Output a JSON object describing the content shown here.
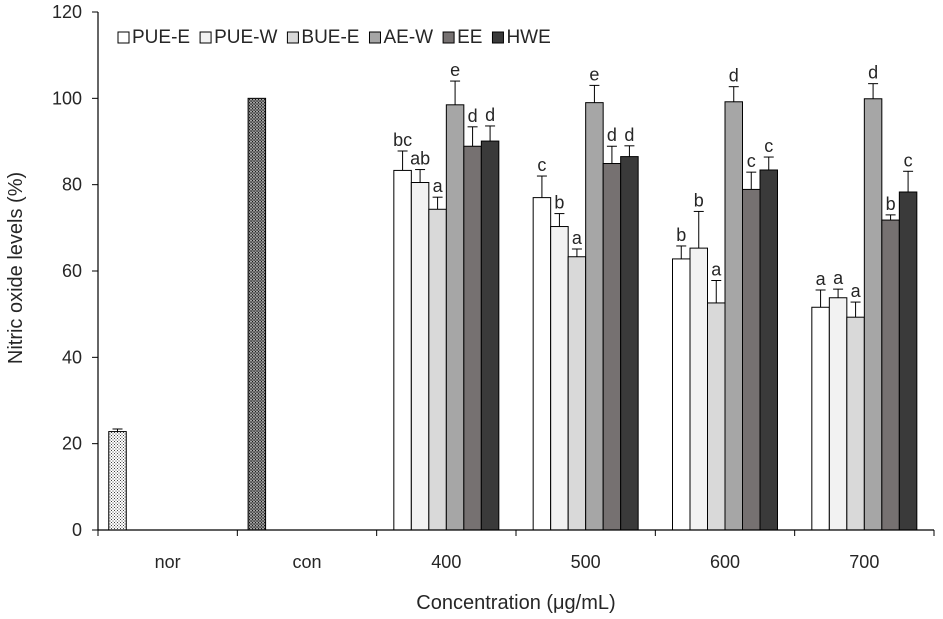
{
  "chart_data": {
    "type": "bar",
    "xlabel": "Concentration (μg/mL)",
    "ylabel": "Nitric oxide levels (%)",
    "ylim": [
      0,
      120
    ],
    "yticks": [
      0,
      20,
      40,
      60,
      80,
      100,
      120
    ],
    "grid": false,
    "legend_position": "top-left",
    "controls": [
      {
        "category": "nor",
        "value": 22.8,
        "error": 0.6,
        "pattern": "dots-light"
      },
      {
        "category": "con",
        "value": 100,
        "error": 0,
        "pattern": "dots-dark"
      }
    ],
    "categories": [
      "400",
      "500",
      "600",
      "700"
    ],
    "all_categories": [
      "nor",
      "con",
      "400",
      "500",
      "600",
      "700"
    ],
    "series": [
      {
        "name": "PUE-E",
        "color": "#ffffff",
        "values": [
          83.3,
          77.0,
          62.8,
          51.6
        ],
        "errors": [
          4.5,
          5.0,
          3.0,
          4.0
        ],
        "labels": [
          "bc",
          "c",
          "b",
          "a"
        ]
      },
      {
        "name": "PUE-W",
        "color": "#f2f2f2",
        "values": [
          80.5,
          70.3,
          65.3,
          53.8
        ],
        "errors": [
          3.0,
          3.0,
          8.5,
          2.0
        ],
        "labels": [
          "ab",
          "b",
          "b",
          "a"
        ]
      },
      {
        "name": "BUE-E",
        "color": "#d9d9d9",
        "values": [
          74.3,
          63.3,
          52.6,
          49.3
        ],
        "errors": [
          2.8,
          1.8,
          5.2,
          3.5
        ],
        "labels": [
          "a",
          "a",
          "a",
          "a"
        ]
      },
      {
        "name": "AE-W",
        "color": "#a6a6a6",
        "values": [
          98.5,
          99.0,
          99.2,
          99.9
        ],
        "errors": [
          5.5,
          4.0,
          3.5,
          3.5
        ],
        "labels": [
          "e",
          "e",
          "d",
          "d"
        ]
      },
      {
        "name": "EE",
        "color": "#767171",
        "values": [
          88.9,
          84.9,
          78.9,
          71.8
        ],
        "errors": [
          4.5,
          4.0,
          4.0,
          1.2
        ],
        "labels": [
          "d",
          "d",
          "c",
          "b"
        ]
      },
      {
        "name": "HWE",
        "color": "#3a3a3a",
        "values": [
          90.1,
          86.5,
          83.4,
          78.3
        ],
        "errors": [
          3.5,
          2.5,
          3.0,
          4.8
        ],
        "labels": [
          "d",
          "d",
          "c",
          "c"
        ]
      }
    ]
  }
}
